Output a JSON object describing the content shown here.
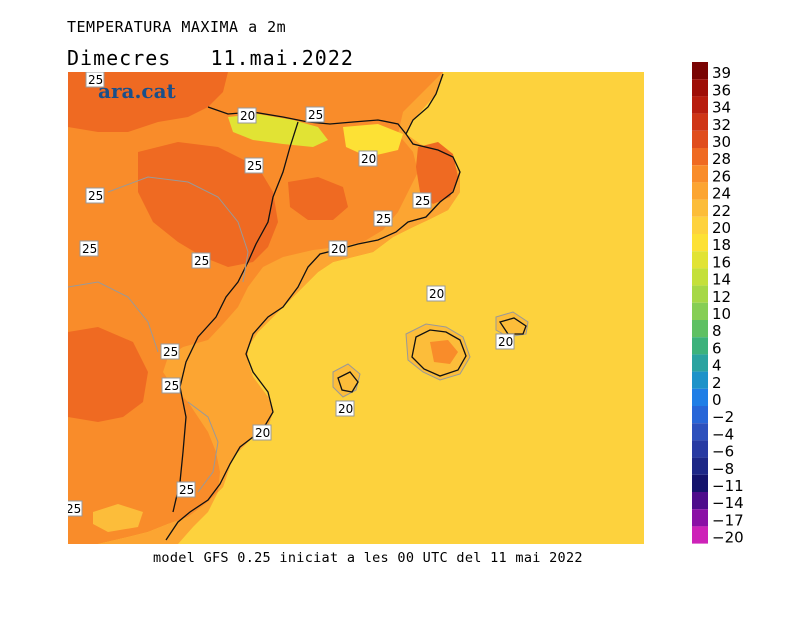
{
  "header": {
    "title": "TEMPERATURA MAXIMA a 2m",
    "date_line": "Dimecres   11.mai.2022"
  },
  "footer": "model GFS 0.25 iniciat a les 00 UTC del 11 mai 2022",
  "logo": "ara.cat",
  "map": {
    "contour_labels": [
      "25",
      "25",
      "20",
      "25",
      "20",
      "25",
      "25",
      "25",
      "25",
      "25",
      "20",
      "20",
      "20",
      "20",
      "25",
      "25",
      "20",
      "25",
      "20",
      "25"
    ]
  },
  "legend": {
    "labels": [
      "39",
      "36",
      "34",
      "32",
      "30",
      "28",
      "26",
      "24",
      "22",
      "20",
      "18",
      "16",
      "14",
      "12",
      "10",
      "8",
      "6",
      "4",
      "2",
      "0",
      "−2",
      "−4",
      "−6",
      "−8",
      "−11",
      "−14",
      "−17",
      "−20"
    ],
    "colors": [
      "#7a0403",
      "#9e0e07",
      "#b81d0e",
      "#cf3516",
      "#e04d1c",
      "#ef6a22",
      "#f98c2a",
      "#fca532",
      "#fcbd3a",
      "#fed23e",
      "#fde135",
      "#e1e334",
      "#c4e03a",
      "#a6d846",
      "#86ce55",
      "#5fc063",
      "#3cb27b",
      "#2aa3a0",
      "#1d93c9",
      "#1f7ee6",
      "#2766d8",
      "#2c50bd",
      "#283aa2",
      "#1d2787",
      "#14136c",
      "#4e0d8c",
      "#8a10a5",
      "#cd22b8"
    ]
  }
}
